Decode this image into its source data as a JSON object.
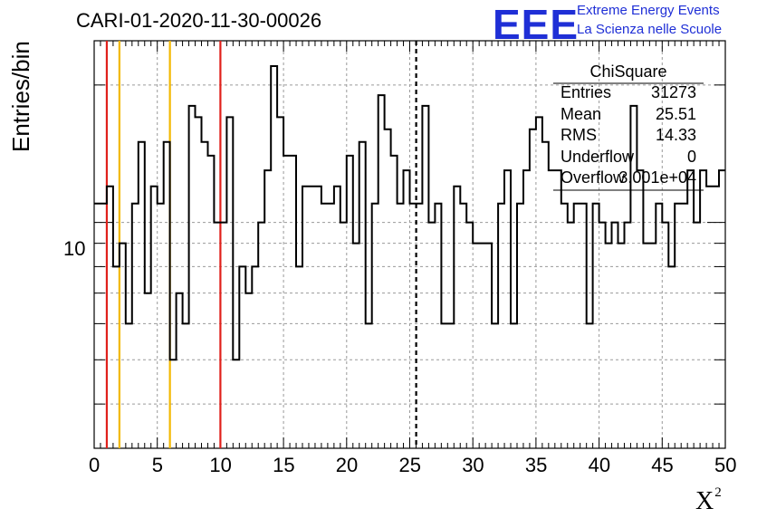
{
  "title": "CARI-01-2020-11-30-00026",
  "logo": {
    "mark": "EEE",
    "line1": "Extreme Energy Events",
    "line2": "La Scienza nelle Scuole",
    "color": "#1f2fd6"
  },
  "stats": {
    "title": "ChiSquare",
    "rows": [
      {
        "name": "Entries",
        "value": "31273"
      },
      {
        "name": "Mean",
        "value": "25.51"
      },
      {
        "name": "RMS",
        "value": "14.33"
      },
      {
        "name": "Underflow",
        "value": "0"
      },
      {
        "name": "Overflow",
        "value": "3.001e+04"
      }
    ]
  },
  "chart_data": {
    "type": "histogram",
    "xlabel": "X",
    "xlabel_superscript": "2",
    "ylabel": "Entries/bin",
    "xlim": [
      0,
      50
    ],
    "ylim": [
      3.2,
      25
    ],
    "yscale": "log",
    "grid": true,
    "x_ticks": [
      "0",
      "5",
      "10",
      "15",
      "20",
      "25",
      "30",
      "35",
      "40",
      "45",
      "50"
    ],
    "y_tick_label": "10",
    "bin_width": 0.5,
    "values": [
      11,
      11,
      12,
      8,
      9,
      6,
      11,
      15,
      7,
      12,
      11,
      15,
      5,
      7,
      6,
      18,
      17,
      15,
      14,
      10,
      10,
      17,
      5,
      8,
      7,
      8,
      10,
      13,
      22,
      17,
      14,
      14,
      8,
      12,
      12,
      12,
      11,
      11,
      12,
      10,
      14,
      9,
      15,
      6,
      11,
      19,
      16,
      14,
      11,
      13,
      11,
      11,
      18,
      10,
      11,
      6,
      6,
      12,
      11,
      10,
      9,
      9,
      9,
      6,
      11,
      13,
      6,
      11,
      13,
      16,
      17,
      15,
      13,
      13,
      11,
      10,
      11,
      11,
      6,
      11,
      10,
      9,
      10,
      9,
      10,
      18,
      13,
      9,
      9,
      11,
      10,
      8,
      11,
      11,
      13,
      10,
      13,
      12,
      12,
      13
    ],
    "vertical_lines": [
      {
        "x": 1,
        "color": "#e0201b",
        "style": "solid"
      },
      {
        "x": 2,
        "color": "#f2b800",
        "style": "solid"
      },
      {
        "x": 6,
        "color": "#f2b800",
        "style": "solid"
      },
      {
        "x": 10,
        "color": "#e0201b",
        "style": "solid"
      },
      {
        "x": 25.51,
        "color": "#000000",
        "style": "dashed"
      }
    ]
  }
}
